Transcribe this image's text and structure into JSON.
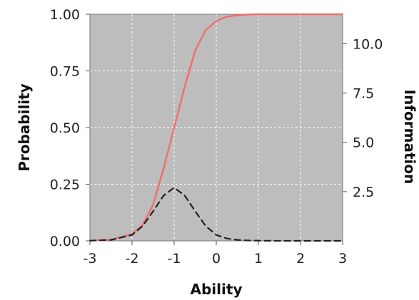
{
  "chart_data": {
    "type": "line",
    "xlabel": "Ability",
    "ylabel": "Probability",
    "y2label": "Information",
    "xlim": [
      -3,
      3
    ],
    "ylim": [
      0,
      1
    ],
    "y2lim": [
      0,
      11.5
    ],
    "x_ticks": [
      "-3",
      "-2",
      "-1",
      "0",
      "1",
      "2",
      "3"
    ],
    "y_ticks": [
      "0.00",
      "0.25",
      "0.50",
      "0.75",
      "1.00"
    ],
    "y2_ticks": [
      "2.5",
      "5.0",
      "7.5",
      "10.0"
    ],
    "grid": true,
    "background": "#bdbdbd",
    "series": [
      {
        "axis": "left",
        "color": "#f26d6d",
        "style": "solid",
        "x": [
          -3.0,
          -2.5,
          -2.0,
          -1.75,
          -1.5,
          -1.25,
          -1.0,
          -0.75,
          -0.5,
          -0.25,
          0.0,
          0.25,
          0.5,
          0.75,
          1.0,
          1.5,
          2.0,
          3.0
        ],
        "y": [
          0.001,
          0.005,
          0.03,
          0.07,
          0.16,
          0.32,
          0.5,
          0.68,
          0.84,
          0.93,
          0.97,
          0.99,
          0.995,
          0.999,
          1.0,
          1.0,
          1.0,
          1.0
        ]
      },
      {
        "axis": "right",
        "color": "#222222",
        "style": "dashed",
        "x": [
          -3.0,
          -2.5,
          -2.0,
          -1.75,
          -1.5,
          -1.25,
          -1.0,
          -0.75,
          -0.5,
          -0.25,
          0.0,
          0.25,
          0.5,
          0.75,
          1.0,
          1.5,
          2.0,
          3.0
        ],
        "y": [
          0.01,
          0.05,
          0.3,
          0.75,
          1.5,
          2.3,
          2.7,
          2.3,
          1.5,
          0.75,
          0.3,
          0.12,
          0.05,
          0.02,
          0.01,
          0.0,
          0.0,
          0.0
        ]
      }
    ]
  }
}
